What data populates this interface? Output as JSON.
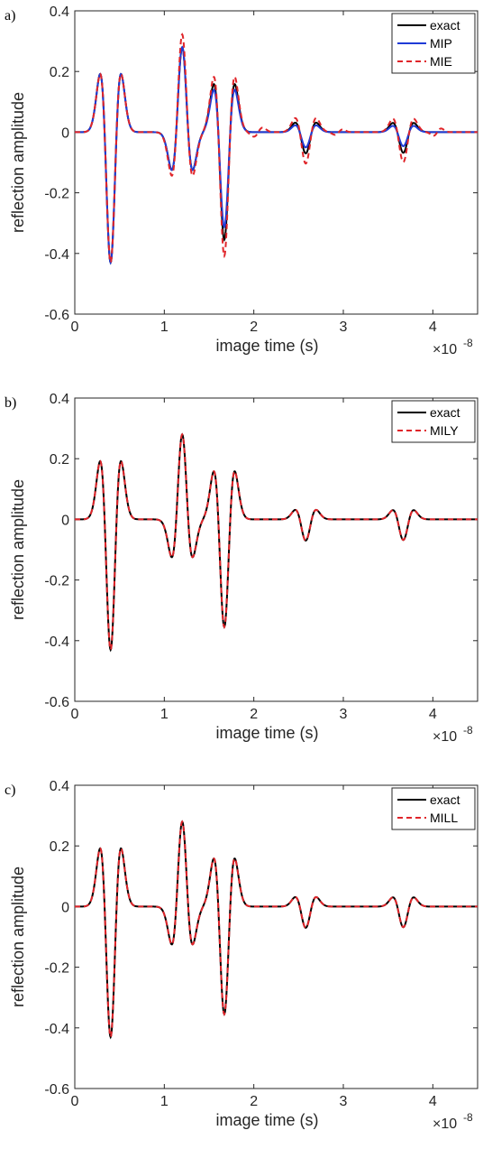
{
  "chart_data": [
    {
      "type": "line",
      "panel_label": "a)",
      "xlabel": "image time (s)",
      "ylabel": "reflection amplitude",
      "x_multiplier": "×10",
      "x_multiplier_exp": "-8",
      "xlim": [
        0,
        4.5
      ],
      "ylim": [
        -0.6,
        0.4
      ],
      "xticks": [
        0,
        1,
        2,
        3,
        4
      ],
      "yticks": [
        -0.6,
        -0.4,
        -0.2,
        0,
        0.2,
        0.4
      ],
      "xtick_labels": [
        "0",
        "1",
        "2",
        "3",
        "4"
      ],
      "ytick_labels": [
        "-0.6",
        "-0.4",
        "-0.2",
        "0",
        "0.2",
        "0.4"
      ],
      "legend_position": "top-right",
      "series": [
        {
          "name": "exact",
          "color": "#000000",
          "style": "solid",
          "scale": [
            1,
            1,
            1,
            1,
            1,
            1,
            1
          ],
          "gamma": 0
        },
        {
          "name": "MIP",
          "color": "#1f3bd6",
          "style": "solid",
          "scale": [
            1,
            1,
            0.88,
            0.72,
            0.68,
            0.6,
            0.6
          ],
          "gamma": 0
        },
        {
          "name": "MIE",
          "color": "#e0252a",
          "style": "dashed",
          "scale": [
            1,
            1.15,
            1.15,
            1.48,
            1.45,
            2.05,
            2.55
          ],
          "gamma": 0.035
        }
      ]
    },
    {
      "type": "line",
      "panel_label": "b)",
      "xlabel": "image time (s)",
      "ylabel": "reflection amplitude",
      "x_multiplier": "×10",
      "x_multiplier_exp": "-8",
      "xlim": [
        0,
        4.5
      ],
      "ylim": [
        -0.6,
        0.4
      ],
      "xticks": [
        0,
        1,
        2,
        3,
        4
      ],
      "yticks": [
        -0.6,
        -0.4,
        -0.2,
        0,
        0.2,
        0.4
      ],
      "xtick_labels": [
        "0",
        "1",
        "2",
        "3",
        "4"
      ],
      "ytick_labels": [
        "-0.6",
        "-0.4",
        "-0.2",
        "0",
        "0.2",
        "0.4"
      ],
      "legend_position": "top-right",
      "series": [
        {
          "name": "exact",
          "color": "#000000",
          "style": "solid",
          "scale": [
            1,
            1,
            1,
            1,
            1,
            1,
            1
          ],
          "gamma": 0
        },
        {
          "name": "MILY",
          "color": "#e0252a",
          "style": "dashed",
          "scale": [
            1,
            1,
            1,
            1,
            1,
            1,
            1
          ],
          "gamma": 0
        }
      ]
    },
    {
      "type": "line",
      "panel_label": "c)",
      "xlabel": "image time (s)",
      "ylabel": "reflection amplitude",
      "x_multiplier": "×10",
      "x_multiplier_exp": "-8",
      "xlim": [
        0,
        4.5
      ],
      "ylim": [
        -0.6,
        0.4
      ],
      "xticks": [
        0,
        1,
        2,
        3,
        4
      ],
      "yticks": [
        -0.6,
        -0.4,
        -0.2,
        0,
        0.2,
        0.4
      ],
      "xtick_labels": [
        "0",
        "1",
        "2",
        "3",
        "4"
      ],
      "ytick_labels": [
        "-0.6",
        "-0.4",
        "-0.2",
        "0",
        "0.2",
        "0.4"
      ],
      "legend_position": "top-right",
      "series": [
        {
          "name": "exact",
          "color": "#000000",
          "style": "solid",
          "scale": [
            1,
            1,
            1,
            1,
            1,
            1,
            1
          ],
          "gamma": 0
        },
        {
          "name": "MILL",
          "color": "#e0252a",
          "style": "dashed",
          "scale": [
            1,
            1,
            1,
            1,
            1,
            1,
            1
          ],
          "gamma": 0
        }
      ]
    }
  ],
  "reflectors": {
    "times": [
      0.4,
      1.2,
      1.67,
      2.58,
      3.67
    ],
    "amplitudes": [
      -0.43,
      0.28,
      -0.355,
      -0.07,
      -0.068
    ],
    "pulse_width": 0.095
  }
}
